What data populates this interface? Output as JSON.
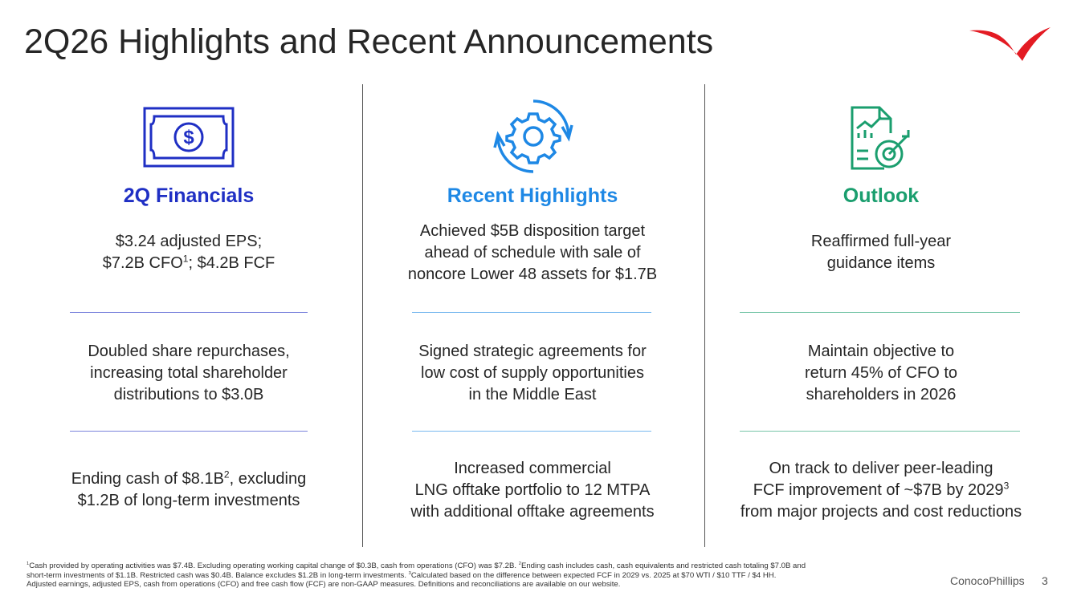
{
  "title": "2Q26 Highlights and Recent Announcements",
  "columns": [
    {
      "heading": "2Q Financials",
      "color": "#1f2fc4",
      "items": [
        [
          [
            {
              "text": "$3.24 adjusted EPS;"
            }
          ],
          [
            {
              "text": "$7.2B CFO"
            },
            {
              "sup": "1"
            },
            {
              "text": "; $4.2B FCF"
            }
          ]
        ],
        [
          [
            {
              "text": "Doubled share repurchases,"
            }
          ],
          [
            {
              "text": "increasing total shareholder"
            }
          ],
          [
            {
              "text": "distributions to $3.0B"
            }
          ]
        ],
        [
          [
            {
              "text": "Ending cash of $8.1B"
            },
            {
              "sup": "2"
            },
            {
              "text": ", excluding"
            }
          ],
          [
            {
              "text": "$1.2B of long-term investments"
            }
          ]
        ]
      ]
    },
    {
      "heading": "Recent Highlights",
      "color": "#1e88e5",
      "items": [
        [
          [
            {
              "text": "Achieved $5B disposition target"
            }
          ],
          [
            {
              "text": "ahead of schedule with sale of"
            }
          ],
          [
            {
              "text": "noncore Lower 48 assets for $1.7B"
            }
          ]
        ],
        [
          [
            {
              "text": "Signed strategic agreements for"
            }
          ],
          [
            {
              "text": "low cost of supply opportunities"
            }
          ],
          [
            {
              "text": "in the Middle East"
            }
          ]
        ],
        [
          [
            {
              "text": "Increased commercial"
            }
          ],
          [
            {
              "text": "LNG offtake portfolio to 12 MTPA"
            }
          ],
          [
            {
              "text": "with additional offtake agreements"
            }
          ]
        ]
      ]
    },
    {
      "heading": "Outlook",
      "color": "#1a9e6e",
      "items": [
        [
          [
            {
              "text": "Reaffirmed full-year"
            }
          ],
          [
            {
              "text": "guidance items"
            }
          ]
        ],
        [
          [
            {
              "text": "Maintain objective to"
            }
          ],
          [
            {
              "text": "return 45% of CFO to"
            }
          ],
          [
            {
              "text": "shareholders in 2026"
            }
          ]
        ],
        [
          [
            {
              "text": "On track to deliver peer-leading"
            }
          ],
          [
            {
              "text": "FCF improvement of ~$7B by 2029"
            },
            {
              "sup": "3"
            }
          ],
          [
            {
              "text": "from major projects and cost reductions"
            }
          ]
        ]
      ]
    }
  ],
  "footnote": [
    [
      {
        "sup": "1"
      },
      {
        "text": "Cash provided by operating activities was $7.4B. Excluding operating working capital change of $0.3B, cash from operations (CFO) was $7.2B. "
      },
      {
        "sup": "2"
      },
      {
        "text": "Ending cash includes cash, cash equivalents and restricted cash totaling $7.0B and"
      }
    ],
    [
      {
        "text": "short-term investments of $1.1B. Restricted cash was $0.4B. Balance excludes $1.2B in long-term investments. "
      },
      {
        "sup": "3"
      },
      {
        "text": "Calculated based on the difference between expected FCF in 2029 vs. 2025 at $70 WTI / $10 TTF / $4 HH."
      }
    ],
    [
      {
        "text": "Adjusted earnings, adjusted EPS, cash from operations (CFO) and free cash flow (FCF) are non-GAAP measures. Definitions and reconciliations are available on our website."
      }
    ]
  ],
  "brand": "ConocoPhillips",
  "page": "3"
}
